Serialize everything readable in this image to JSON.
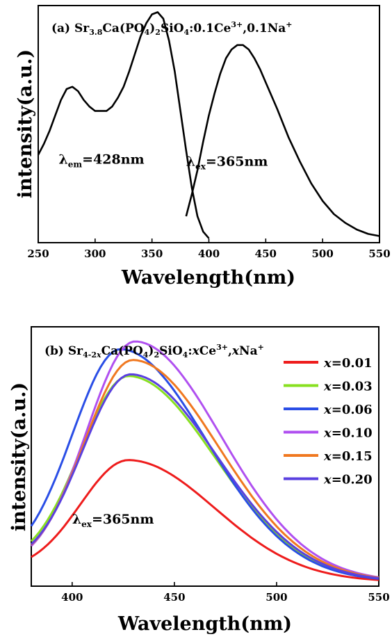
{
  "chart_data": [
    {
      "type": "line",
      "panel_label": "(a)",
      "title_parts": [
        {
          "t": "Sr",
          "s": "n"
        },
        {
          "t": "3.8",
          "s": "sub"
        },
        {
          "t": "Ca(PO",
          "s": "n"
        },
        {
          "t": "4",
          "s": "sub"
        },
        {
          "t": ")",
          "s": "n"
        },
        {
          "t": "2",
          "s": "sub"
        },
        {
          "t": "SiO",
          "s": "n"
        },
        {
          "t": "4",
          "s": "sub"
        },
        {
          "t": ":0.1Ce",
          "s": "n"
        },
        {
          "t": "3+",
          "s": "sup"
        },
        {
          "t": ",0.1Na",
          "s": "n"
        },
        {
          "t": "+",
          "s": "sup"
        }
      ],
      "xlabel": "Wavelength(nm)",
      "ylabel": "intensity(a.u.)",
      "xlim": [
        250,
        550
      ],
      "ylim": [
        0,
        1.08
      ],
      "xticks": [
        250,
        300,
        350,
        400,
        450,
        500,
        550
      ],
      "annotations": [
        {
          "main": "λ",
          "sub": "em",
          "rest": "=428nm",
          "x": 268,
          "y": 0.36
        },
        {
          "main": "λ",
          "sub": "ex",
          "rest": "=365nm",
          "x": 380,
          "y": 0.35
        }
      ],
      "series": [
        {
          "color": "#000000",
          "x": [
            250,
            255,
            260,
            265,
            270,
            275,
            280,
            285,
            290,
            295,
            300,
            305,
            310,
            315,
            320,
            325,
            330,
            335,
            340,
            345,
            350,
            355,
            360,
            365,
            370,
            375,
            380,
            385,
            390,
            395,
            400
          ],
          "y": [
            0.4,
            0.45,
            0.51,
            0.58,
            0.65,
            0.7,
            0.71,
            0.69,
            0.65,
            0.62,
            0.6,
            0.6,
            0.6,
            0.62,
            0.66,
            0.71,
            0.78,
            0.86,
            0.94,
            1.0,
            1.04,
            1.05,
            1.02,
            0.92,
            0.78,
            0.6,
            0.42,
            0.25,
            0.12,
            0.05,
            0.02
          ]
        },
        {
          "color": "#000000",
          "x": [
            380,
            385,
            390,
            395,
            400,
            405,
            410,
            415,
            420,
            425,
            430,
            435,
            440,
            445,
            450,
            460,
            470,
            480,
            490,
            500,
            510,
            520,
            530,
            540,
            550
          ],
          "y": [
            0.12,
            0.22,
            0.33,
            0.46,
            0.58,
            0.68,
            0.77,
            0.84,
            0.88,
            0.9,
            0.9,
            0.88,
            0.84,
            0.79,
            0.73,
            0.61,
            0.48,
            0.37,
            0.27,
            0.19,
            0.13,
            0.09,
            0.06,
            0.04,
            0.03
          ]
        }
      ]
    },
    {
      "type": "line",
      "panel_label": "(b)",
      "title_parts": [
        {
          "t": "Sr",
          "s": "n"
        },
        {
          "t": "4-2",
          "s": "sub"
        },
        {
          "t": "x",
          "s": "subi"
        },
        {
          "t": "Ca(PO",
          "s": "n"
        },
        {
          "t": "4",
          "s": "sub"
        },
        {
          "t": ")",
          "s": "n"
        },
        {
          "t": "2",
          "s": "sub"
        },
        {
          "t": "SiO",
          "s": "n"
        },
        {
          "t": "4",
          "s": "sub"
        },
        {
          "t": ":",
          "s": "n"
        },
        {
          "t": "x",
          "s": "i"
        },
        {
          "t": "Ce",
          "s": "n"
        },
        {
          "t": "3+",
          "s": "sup"
        },
        {
          "t": ",",
          "s": "n"
        },
        {
          "t": "x",
          "s": "i"
        },
        {
          "t": "Na",
          "s": "n"
        },
        {
          "t": "+",
          "s": "sup"
        }
      ],
      "xlabel": "Wavelength(nm)",
      "ylabel": "intensity(a.u.)",
      "xlim": [
        380,
        550
      ],
      "ylim": [
        0,
        1.08
      ],
      "xticks": [
        400,
        450,
        500,
        550
      ],
      "annotations": [
        {
          "main": "λ",
          "sub": "ex",
          "rest": "=365nm",
          "x": 400,
          "y": 0.26
        }
      ],
      "series": [
        {
          "name_var": "x",
          "name_val": "=0.01",
          "color": "#ee1c1c",
          "peak": 428,
          "amp": 0.49,
          "b0": 0.08
        },
        {
          "name_var": "x",
          "name_val": "=0.03",
          "color": "#88e020",
          "peak": 428,
          "amp": 0.83,
          "b0": 0.12
        },
        {
          "name_var": "x",
          "name_val": "=0.06",
          "color": "#2a4ee6",
          "peak": 424,
          "amp": 0.94,
          "b0": 0.12
        },
        {
          "name_var": "x",
          "name_val": "=0.10",
          "color": "#b050f0",
          "peak": 431,
          "amp": 0.98,
          "b0": 0.1
        },
        {
          "name_var": "x",
          "name_val": "=0.15",
          "color": "#f07820",
          "peak": 430,
          "amp": 0.9,
          "b0": 0.11
        },
        {
          "name_var": "x",
          "name_val": "=0.20",
          "color": "#5a40e0",
          "peak": 429,
          "amp": 0.84,
          "b0": 0.11
        }
      ]
    }
  ]
}
